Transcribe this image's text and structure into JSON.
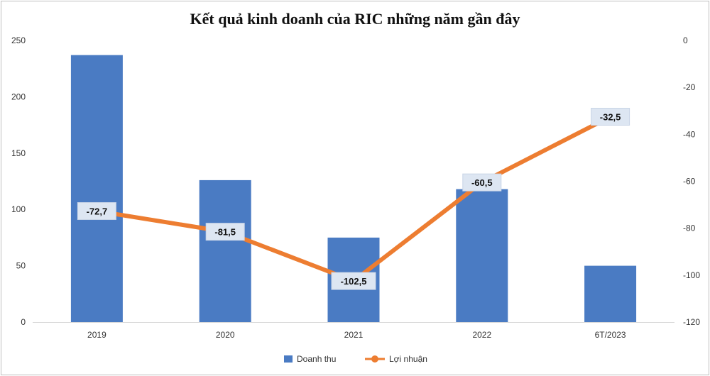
{
  "chart_data": {
    "type": "bar",
    "title": "Kết quả kinh doanh của RIC những năm gần đây",
    "categories": [
      "2019",
      "2020",
      "2021",
      "2022",
      "6T/2023"
    ],
    "series": [
      {
        "name": "Doanh thu",
        "type": "bar",
        "axis": "left",
        "values": [
          237,
          126,
          75,
          118,
          50
        ],
        "color": "#4a7bc3"
      },
      {
        "name": "Lợi nhuận",
        "type": "line",
        "axis": "right",
        "values": [
          -72.7,
          -81.5,
          -102.5,
          -60.5,
          -32.5
        ],
        "labels": [
          "-72,7",
          "-81,5",
          "-102,5",
          "-60,5",
          "-32,5"
        ],
        "color": "#ed7d31"
      }
    ],
    "y_left": {
      "min": 0,
      "max": 250,
      "ticks": [
        "0",
        "50",
        "100",
        "150",
        "200",
        "250"
      ]
    },
    "y_right": {
      "min": -120,
      "max": 0,
      "ticks": [
        "0",
        "-20",
        "-40",
        "-60",
        "-80",
        "-100",
        "-120"
      ]
    },
    "grid": false,
    "legend_position": "bottom"
  }
}
